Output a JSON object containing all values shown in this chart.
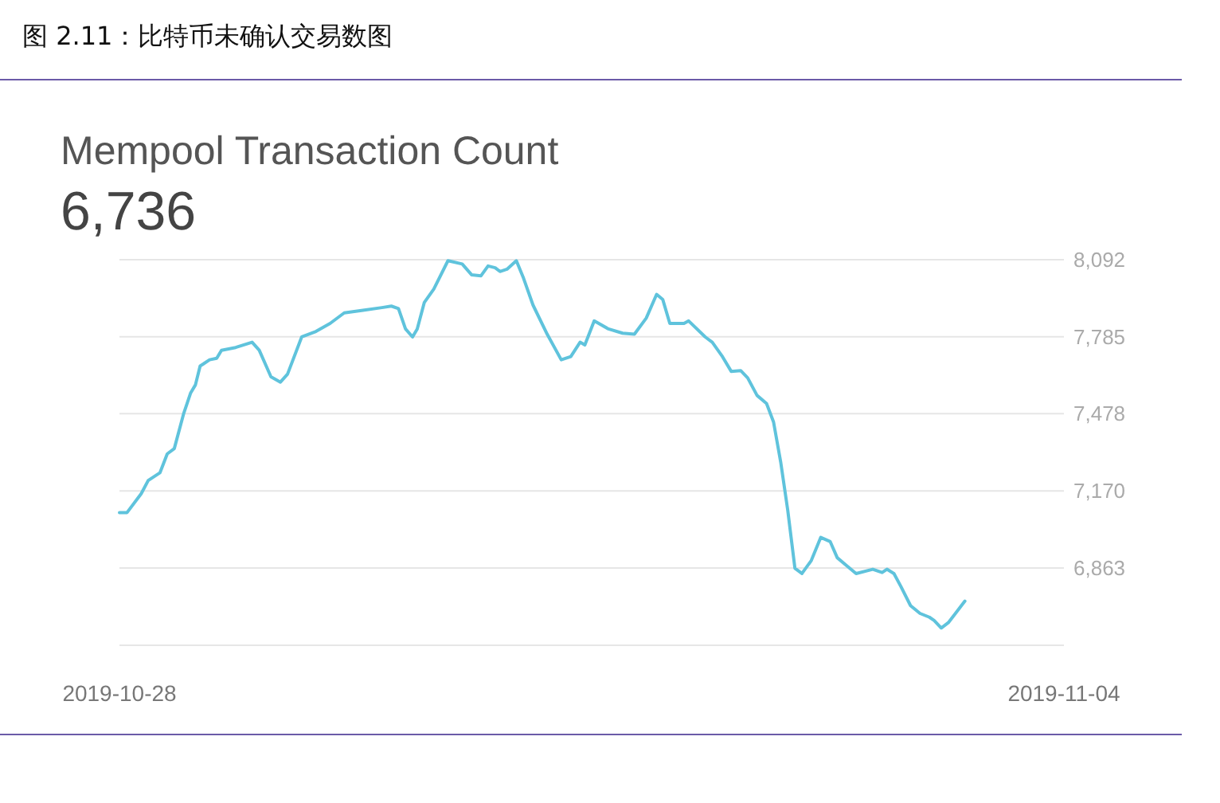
{
  "chart_data": {
    "type": "line",
    "title": "图 2.11：比特币未确认交易数图",
    "subtitle": "Mempool Transaction Count",
    "annotations": [
      "6,736"
    ],
    "x": [
      "2019-10-28T00:00",
      "2019-10-28T01:21",
      "2019-10-28T03:52",
      "2019-10-28T05:07",
      "2019-10-28T07:13",
      "2019-10-28T08:30",
      "2019-10-28T09:45",
      "2019-10-28T11:24",
      "2019-10-28T12:40",
      "2019-10-28T13:31",
      "2019-10-28T14:21",
      "2019-10-28T16:02",
      "2019-10-28T17:18",
      "2019-10-28T18:09",
      "2019-10-28T20:40",
      "2019-10-28T23:36",
      "2019-10-29T00:52",
      "2019-10-29T02:57",
      "2019-10-29T04:38",
      "2019-10-29T05:54",
      "2019-10-29T08:25",
      "2019-10-29T10:57",
      "2019-10-29T13:28",
      "2019-10-29T15:59",
      "2019-10-29T19:19",
      "2019-10-29T22:41",
      "2019-10-30T00:22",
      "2019-10-30T01:38",
      "2019-10-30T02:53",
      "2019-10-30T04:08",
      "2019-10-30T04:58",
      "2019-10-30T06:14",
      "2019-10-30T07:55",
      "2019-10-30T10:26",
      "2019-10-30T12:58",
      "2019-10-30T14:38",
      "2019-10-30T16:19",
      "2019-10-30T17:34",
      "2019-10-30T18:50",
      "2019-10-30T19:41",
      "2019-10-30T20:56",
      "2019-10-30T22:36",
      "2019-10-30T23:53",
      "2019-10-31T01:34",
      "2019-10-31T04:05",
      "2019-10-31T06:35",
      "2019-10-31T08:17",
      "2019-10-31T09:56",
      "2019-10-31T10:47",
      "2019-10-31T12:27",
      "2019-10-31T14:59",
      "2019-10-31T17:30",
      "2019-10-31T19:36",
      "2019-10-31T21:42",
      "2019-10-31T23:33",
      "2019-11-01T00:39",
      "2019-11-01T01:54",
      "2019-11-01T04:25",
      "2019-11-01T05:15",
      "2019-11-01T08:12",
      "2019-11-01T09:27",
      "2019-11-01T11:08",
      "2019-11-01T12:49",
      "2019-11-01T14:30",
      "2019-11-01T15:45",
      "2019-11-01T17:25",
      "2019-11-01T19:06",
      "2019-11-01T20:21",
      "2019-11-01T21:37",
      "2019-11-01T22:52",
      "2019-11-02T00:09",
      "2019-11-02T01:24",
      "2019-11-02T03:04",
      "2019-11-02T04:45",
      "2019-11-02T06:26",
      "2019-11-02T07:41",
      "2019-11-02T09:23",
      "2019-11-02T11:02",
      "2019-11-02T14:00",
      "2019-11-02T15:40",
      "2019-11-02T16:31",
      "2019-11-02T17:46",
      "2019-11-02T19:02",
      "2019-11-02T20:43",
      "2019-11-02T22:24",
      "2019-11-03T00:04",
      "2019-11-03T00:55",
      "2019-11-03T02:11",
      "2019-11-03T03:26",
      "2019-11-03T06:23"
    ],
    "series": [
      {
        "color": "#5fc3dc",
        "values": [
          7084,
          7084,
          7159,
          7212,
          7243,
          7318,
          7339,
          7477,
          7561,
          7593,
          7668,
          7693,
          7699,
          7731,
          7742,
          7763,
          7731,
          7625,
          7604,
          7636,
          7784,
          7806,
          7838,
          7880,
          7890,
          7901,
          7907,
          7897,
          7816,
          7784,
          7816,
          7922,
          7975,
          8088,
          8075,
          8032,
          8028,
          8067,
          8060,
          8045,
          8054,
          8088,
          8018,
          7911,
          7795,
          7693,
          7706,
          7763,
          7752,
          7848,
          7816,
          7799,
          7795,
          7859,
          7954,
          7933,
          7838,
          7838,
          7848,
          7784,
          7763,
          7710,
          7647,
          7650,
          7621,
          7551,
          7519,
          7445,
          7286,
          7095,
          6862,
          6841,
          6893,
          6985,
          6968,
          6904,
          6872,
          6841,
          6858,
          6845,
          6858,
          6841,
          6788,
          6713,
          6682,
          6667,
          6654,
          6624,
          6645,
          6731
        ]
      }
    ],
    "xlim": [
      "2019-10-28",
      "2019-11-04"
    ],
    "xticks": [
      "2019-10-28",
      "2019-11-04"
    ],
    "ylim": [
      6555,
      8092
    ],
    "yticks": [
      {
        "value": 6555,
        "label": null
      },
      {
        "value": 6863,
        "label": "6,863"
      },
      {
        "value": 7170,
        "label": "7,170"
      },
      {
        "value": 7478,
        "label": "7,478"
      },
      {
        "value": 7785,
        "label": "7,785"
      },
      {
        "value": 8092,
        "label": "8,092"
      }
    ],
    "grid": "y"
  }
}
